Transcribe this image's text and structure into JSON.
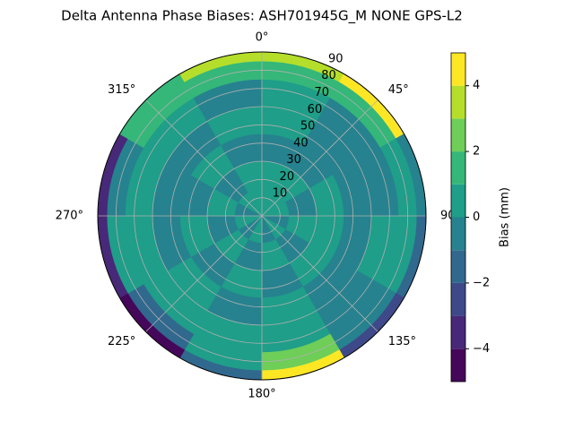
{
  "chart_data": {
    "type": "polar-contour",
    "title": "Delta Antenna Phase Biases: ASH701945G_M    NONE GPS-L2",
    "thetaticks": [
      {
        "value": 0,
        "label": "0°"
      },
      {
        "value": 45,
        "label": "45°"
      },
      90,
      {
        "value": 135,
        "label": "135°"
      },
      {
        "value": 180,
        "label": "180°"
      },
      {
        "value": 225,
        "label": "225°"
      },
      {
        "value": 270,
        "label": "270°"
      },
      {
        "value": 315,
        "label": "315°"
      }
    ],
    "rlim": [
      0,
      90
    ],
    "rticks": [
      10,
      20,
      30,
      40,
      50,
      60,
      70,
      80,
      90
    ],
    "grid": true,
    "azimuth_edges": [
      0,
      30,
      60,
      90,
      120,
      150,
      180,
      210,
      240,
      270,
      300,
      330,
      360
    ],
    "zenith_edges": [
      0,
      15,
      30,
      45,
      60,
      75,
      85,
      90
    ],
    "z": [
      [
        0.5,
        0.5,
        -0.5,
        0.5,
        0.5,
        1.5,
        3.5
      ],
      [
        0.5,
        0.5,
        -0.5,
        -0.5,
        -0.5,
        1.5,
        4.5
      ],
      [
        0.5,
        -0.5,
        0.5,
        -0.5,
        -0.5,
        0.5,
        -0.5
      ],
      [
        -0.5,
        0.5,
        0.5,
        -0.5,
        0.5,
        0.5,
        -1.5
      ],
      [
        0.5,
        -0.5,
        0.5,
        -0.5,
        -0.5,
        -0.5,
        -2.5
      ],
      [
        -0.5,
        0.5,
        -0.5,
        0.5,
        0.5,
        2.5,
        4.5
      ],
      [
        0.5,
        -0.5,
        0.5,
        -0.5,
        0.5,
        0.5,
        -1.5
      ],
      [
        -0.5,
        0.5,
        -0.5,
        0.5,
        0.5,
        -1.5,
        -4.5
      ],
      [
        0.5,
        -0.5,
        0.5,
        -0.5,
        0.5,
        0.5,
        -3.5
      ],
      [
        -0.5,
        0.5,
        -0.5,
        -0.5,
        0.5,
        -0.5,
        -3.5
      ],
      [
        0.5,
        -0.5,
        0.5,
        -0.5,
        0.5,
        1.5,
        1.5
      ],
      [
        0.5,
        0.5,
        -0.5,
        0.5,
        -0.5,
        1.5,
        3.5
      ]
    ],
    "colorbar": {
      "label": "Bias (mm)",
      "levels": [
        -5,
        -4,
        -3,
        -2,
        -1,
        0,
        1,
        2,
        3,
        4,
        5
      ],
      "colors": [
        "#45075a",
        "#482878",
        "#3e4989",
        "#31688e",
        "#26828e",
        "#1f9e89",
        "#35b779",
        "#6ece58",
        "#b5de2b",
        "#fde725"
      ],
      "ticks": [
        {
          "value": -4,
          "label": "−4"
        },
        {
          "value": -2,
          "label": "−2"
        },
        0,
        2,
        4
      ]
    }
  }
}
